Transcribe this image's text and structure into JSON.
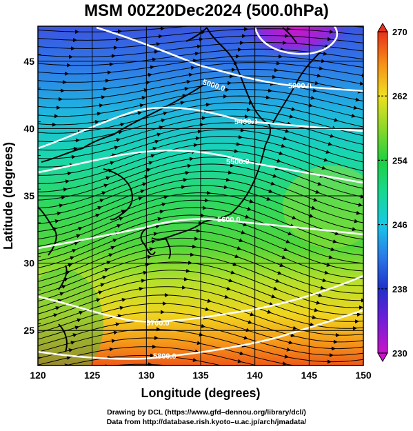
{
  "title": "MSM 00Z20Dec2024 (500.0hPa)",
  "x_axis": {
    "label": "Longitude (degrees)",
    "range": [
      120,
      150
    ],
    "ticks": [
      "120",
      "125",
      "130",
      "135",
      "140",
      "145",
      "150"
    ]
  },
  "y_axis": {
    "label": "Latitude  (degrees)",
    "range": [
      22.4,
      47.6
    ],
    "ticks": [
      "25",
      "30",
      "35",
      "40",
      "45"
    ]
  },
  "colorbar": {
    "range": [
      230,
      270
    ],
    "ticks": [
      "230",
      "238",
      "246",
      "254",
      "262",
      "270"
    ]
  },
  "contours": [
    {
      "label": "5000.0"
    },
    {
      "label": "5200.0"
    },
    {
      "label": "5400.0"
    },
    {
      "label": "5500.0"
    },
    {
      "label": "5600.0"
    },
    {
      "label": "5700.0"
    },
    {
      "label": "5800.0"
    }
  ],
  "footer": {
    "line1": "Drawing by DCL (https://www.gfd–dennou.org/library/dcl/)",
    "line2": "Data from http://database.rish.kyoto–u.ac.jp/arch/jmadata/"
  }
}
